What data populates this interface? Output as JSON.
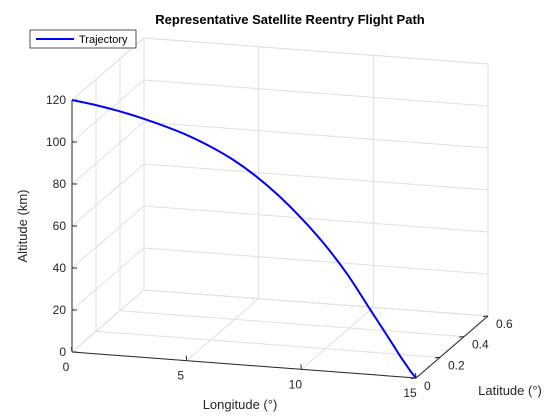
{
  "chart_data": {
    "type": "line",
    "title": "Representative Satellite Reentry Flight Path",
    "xlabel": "Longitude (°)",
    "ylabel": "Latitude (°)",
    "zlabel": "Altitude (km)",
    "xlim": [
      0,
      15
    ],
    "ylim": [
      0,
      0.6
    ],
    "zlim": [
      0,
      120
    ],
    "xticks": [
      0,
      5,
      10,
      15
    ],
    "yticks": [
      0,
      0.2,
      0.4,
      0.6
    ],
    "zticks": [
      0,
      20,
      40,
      60,
      80,
      100,
      120
    ],
    "grid": true,
    "legend_position": "top-left",
    "series": [
      {
        "name": "Trajectory",
        "color": "#0000ff",
        "x": [
          0,
          1,
          2,
          3,
          4,
          5,
          6,
          7,
          8,
          9,
          10,
          11,
          12,
          13,
          13.5,
          14,
          14.3,
          14.6,
          14.8,
          15
        ],
        "y": [
          0,
          0,
          0,
          0,
          0,
          0,
          0,
          0,
          0,
          0,
          0,
          0,
          0,
          0,
          0,
          0,
          0,
          0,
          0,
          0
        ],
        "z": [
          120,
          118.5,
          116.5,
          114,
          111,
          107.5,
          103,
          97.5,
          90.5,
          82,
          72,
          60.5,
          47,
          31,
          23,
          15,
          10,
          5.5,
          2.5,
          0
        ]
      }
    ]
  }
}
